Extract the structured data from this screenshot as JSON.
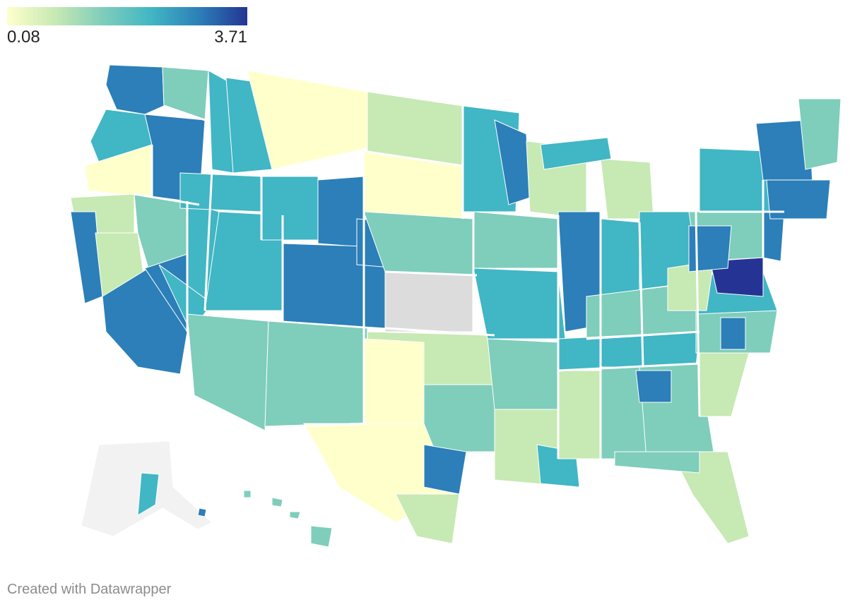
{
  "legend": {
    "min_label": "0.08",
    "max_label": "3.71",
    "min": 0.08,
    "max": 3.71,
    "colors": [
      "#ffffcc",
      "#c7e9b4",
      "#7fcdbb",
      "#41b6c4",
      "#2c7fb8",
      "#253494"
    ]
  },
  "colors": {
    "no_data": "#dcdcdc",
    "alaska_background": "#f2f2f2",
    "border": "#ffffff"
  },
  "map_data": {
    "type": "choropleth",
    "geography": "United States regions (contiguous states, Alaska, Hawaii)",
    "highest_region": "Maryland / Washington D.C. area",
    "notes": "Region-level values colored on a continuous scale from 0.08 to 3.71; gray regions have no data."
  },
  "footer": {
    "credit": "Created with Datawrapper"
  }
}
